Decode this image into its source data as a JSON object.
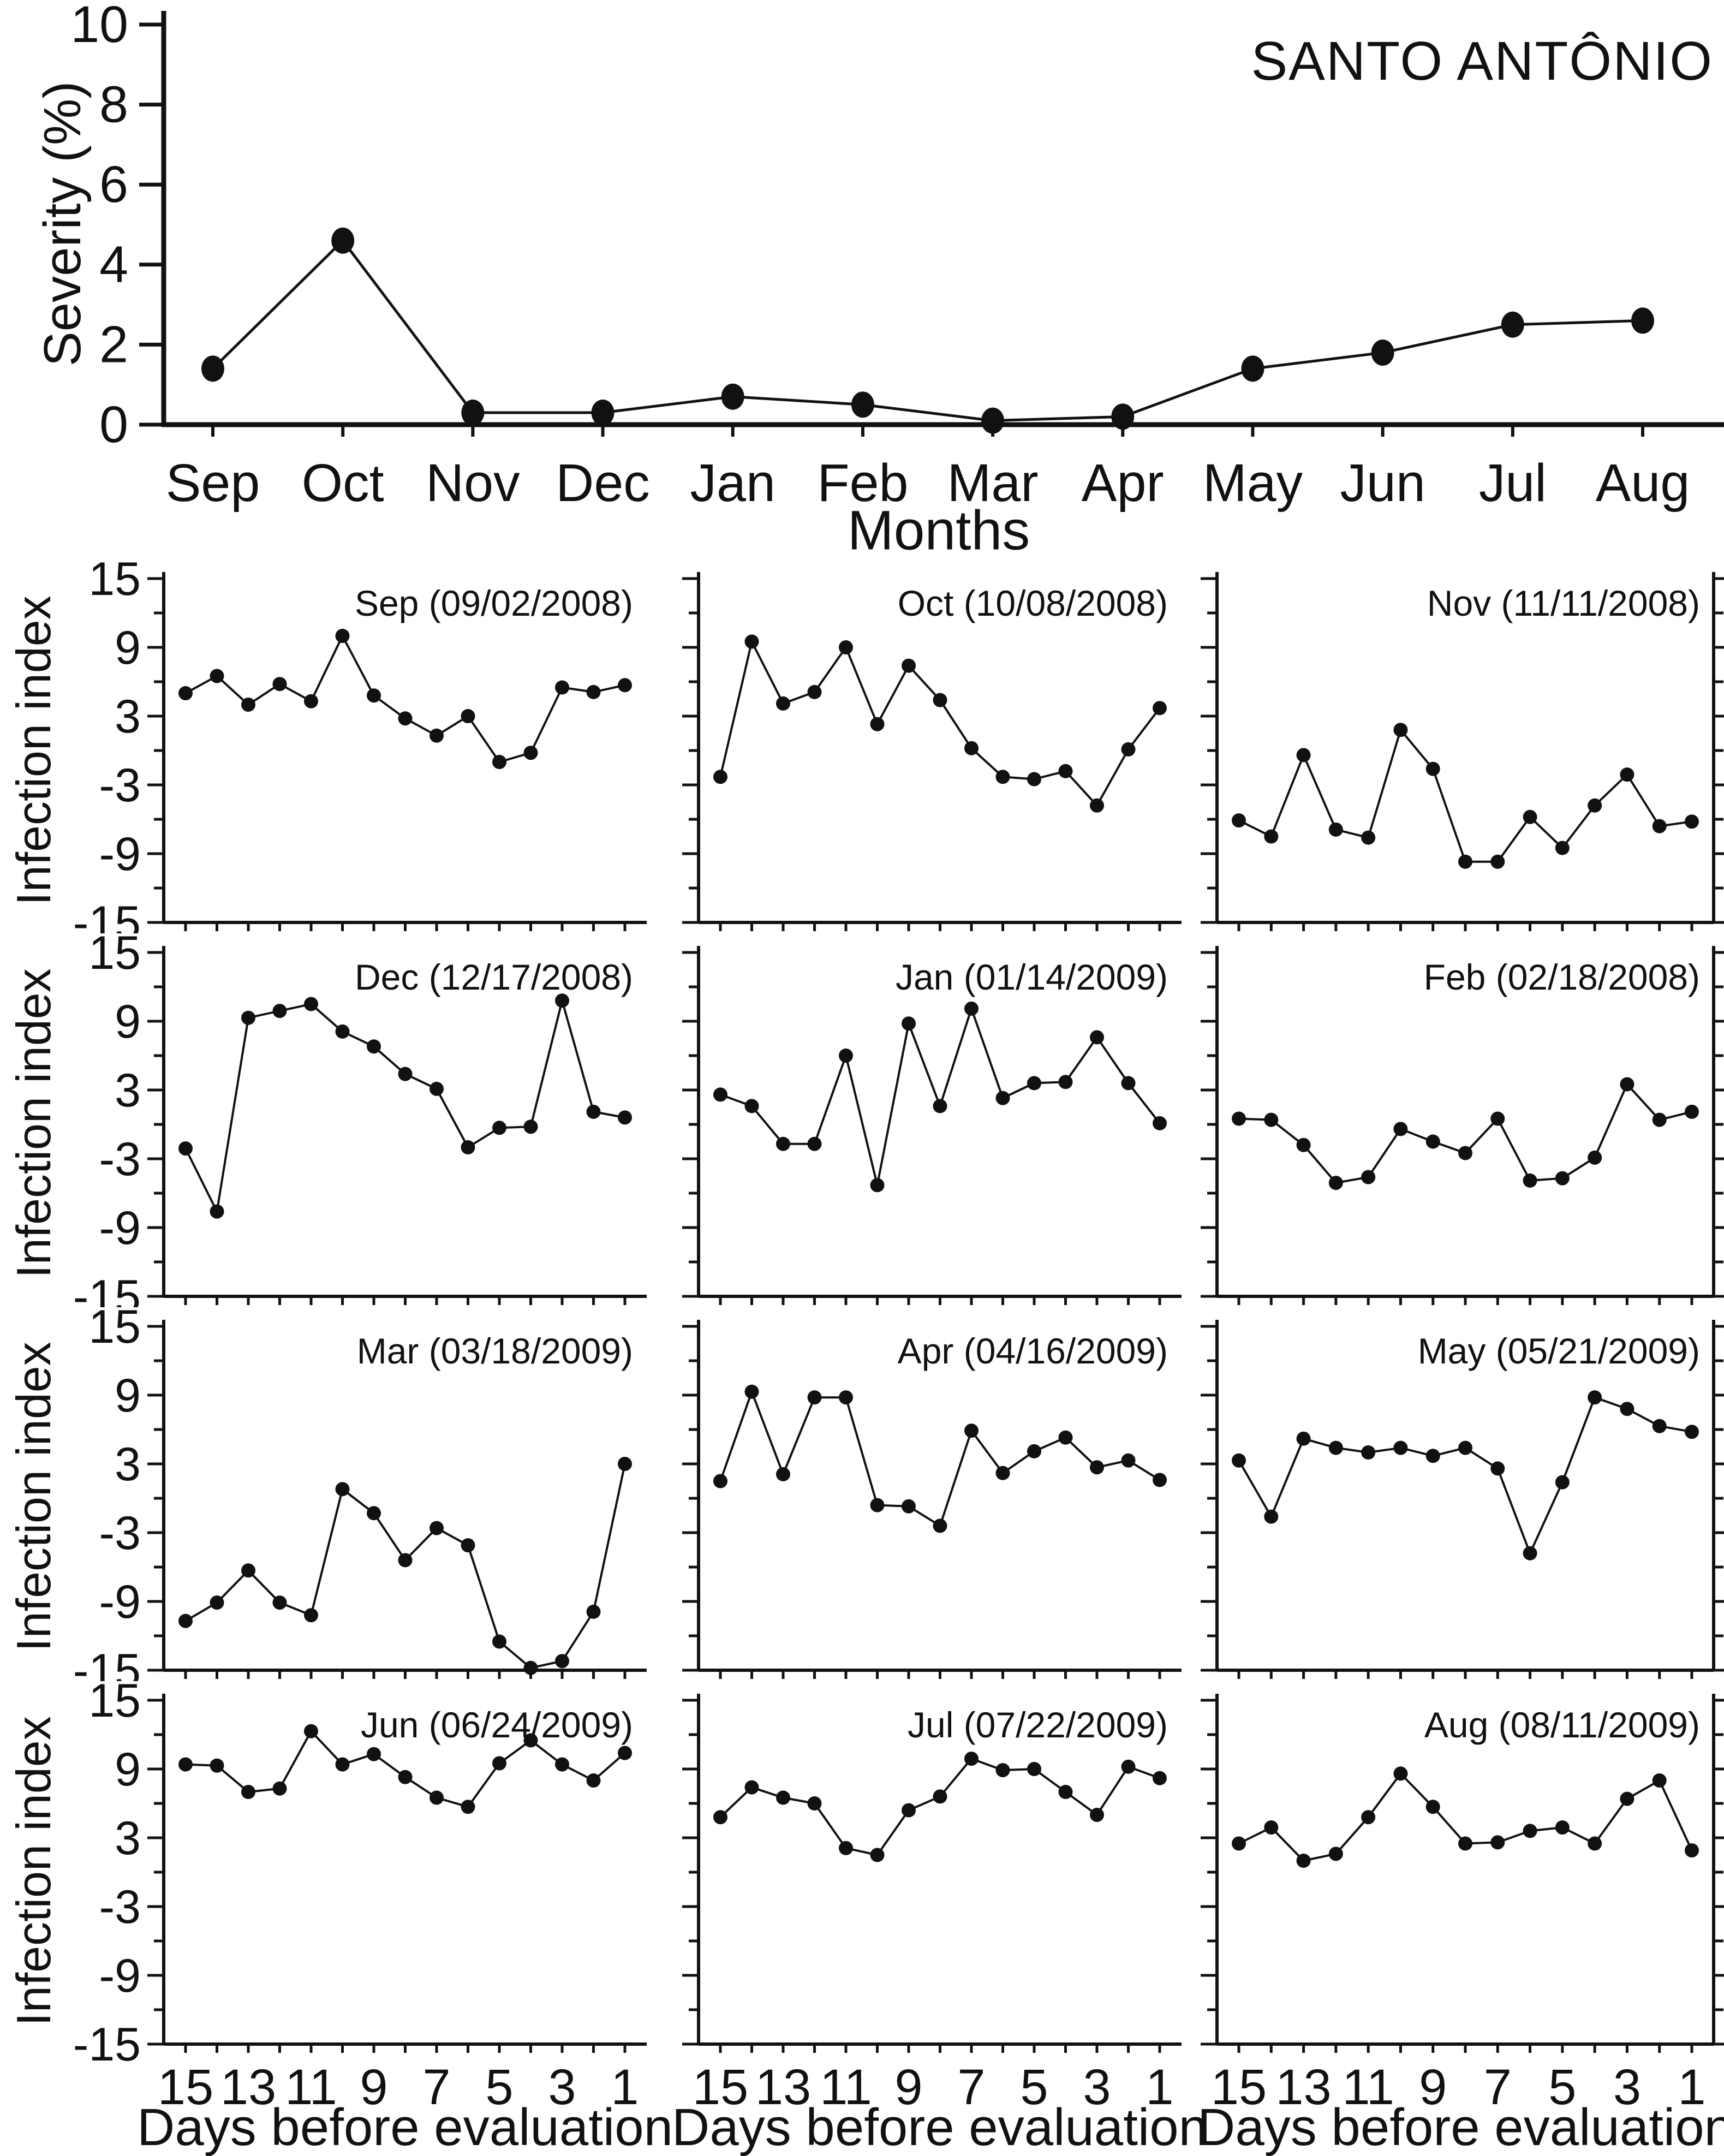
{
  "title": "SANTO ANTÔNIO",
  "labels": {
    "severity_axis": "Severity (%)",
    "months_axis": "Months",
    "infection_axis": "Infection index",
    "days_axis": "Days before evaluation"
  },
  "colors": {
    "ink": "#111111",
    "background": "#ffffff"
  },
  "chart_data": [
    {
      "id": "severity-by-month",
      "type": "line",
      "title": "SANTO ANTÔNIO",
      "categories": [
        "Sep",
        "Oct",
        "Nov",
        "Dec",
        "Jan",
        "Feb",
        "Mar",
        "Apr",
        "May",
        "Jun",
        "Jul",
        "Aug"
      ],
      "values": [
        1.4,
        4.6,
        0.3,
        0.3,
        0.7,
        0.5,
        0.1,
        0.2,
        1.4,
        1.8,
        2.5,
        2.6
      ],
      "xlabel": "Months",
      "ylabel": "Severity (%)",
      "ylim": [
        0,
        10
      ],
      "yticks": [
        0,
        2,
        4,
        6,
        8,
        10
      ],
      "grid": false,
      "legend": "none"
    },
    {
      "id": "sep",
      "type": "line",
      "title": "Sep (09/02/2008)",
      "x": [
        15,
        14,
        13,
        12,
        11,
        10,
        9,
        8,
        7,
        6,
        5,
        4,
        3,
        2,
        1
      ],
      "values": [
        5.0,
        6.5,
        4.0,
        5.8,
        4.3,
        10.0,
        4.8,
        2.8,
        1.3,
        3.0,
        -1.0,
        -0.2,
        5.5,
        5.1,
        5.7
      ],
      "ylim": [
        -15,
        15
      ],
      "yticks": [
        15,
        9,
        3,
        -3,
        -9,
        -15
      ],
      "xticks": [
        15,
        13,
        11,
        9,
        7,
        5,
        3,
        1
      ],
      "ylabel": "Infection index",
      "xlabel": "Days before evaluation"
    },
    {
      "id": "oct",
      "type": "line",
      "title": "Oct (10/08/2008)",
      "x": [
        15,
        14,
        13,
        12,
        11,
        10,
        9,
        8,
        7,
        6,
        5,
        4,
        3,
        2,
        1
      ],
      "values": [
        -2.3,
        9.5,
        4.1,
        5.1,
        9.0,
        2.3,
        7.4,
        4.4,
        0.2,
        -2.3,
        -2.5,
        -1.8,
        -4.8,
        0.1,
        3.7
      ],
      "ylim": [
        -15,
        15
      ],
      "yticks": [
        15,
        9,
        3,
        -3,
        -9,
        -15
      ],
      "xticks": [
        15,
        13,
        11,
        9,
        7,
        5,
        3,
        1
      ],
      "ylabel": "Infection index",
      "xlabel": "Days before evaluation"
    },
    {
      "id": "nov",
      "type": "line",
      "title": "Nov (11/11/2008)",
      "x": [
        15,
        14,
        13,
        12,
        11,
        10,
        9,
        8,
        7,
        6,
        5,
        4,
        3,
        2,
        1
      ],
      "values": [
        -6.1,
        -7.5,
        -0.4,
        -6.9,
        -7.6,
        1.8,
        -1.6,
        -9.7,
        -9.7,
        -5.8,
        -8.5,
        -4.8,
        -2.1,
        -6.6,
        -6.2
      ],
      "ylim": [
        -15,
        15
      ],
      "yticks": [
        15,
        9,
        3,
        -3,
        -9,
        -15
      ],
      "xticks": [
        15,
        13,
        11,
        9,
        7,
        5,
        3,
        1
      ],
      "ylabel": "Infection index",
      "xlabel": "Days before evaluation"
    },
    {
      "id": "dec",
      "type": "line",
      "title": "Dec (12/17/2008)",
      "x": [
        15,
        14,
        13,
        12,
        11,
        10,
        9,
        8,
        7,
        6,
        5,
        4,
        3,
        2,
        1
      ],
      "values": [
        -2.1,
        -7.6,
        9.3,
        9.9,
        10.5,
        8.1,
        6.8,
        4.4,
        3.1,
        -2.0,
        -0.3,
        -0.2,
        10.8,
        1.1,
        0.6
      ],
      "ylim": [
        -15,
        15
      ],
      "yticks": [
        15,
        9,
        3,
        -3,
        -9,
        -15
      ],
      "xticks": [
        15,
        13,
        11,
        9,
        7,
        5,
        3,
        1
      ],
      "ylabel": "Infection index",
      "xlabel": "Days before evaluation"
    },
    {
      "id": "jan",
      "type": "line",
      "title": "Jan (01/14/2009)",
      "x": [
        15,
        14,
        13,
        12,
        11,
        10,
        9,
        8,
        7,
        6,
        5,
        4,
        3,
        2,
        1
      ],
      "values": [
        2.6,
        1.6,
        -1.7,
        -1.7,
        6.0,
        -5.3,
        8.8,
        1.6,
        10.1,
        2.3,
        3.6,
        3.7,
        7.6,
        3.6,
        0.1
      ],
      "ylim": [
        -15,
        15
      ],
      "yticks": [
        15,
        9,
        3,
        -3,
        -9,
        -15
      ],
      "xticks": [
        15,
        13,
        11,
        9,
        7,
        5,
        3,
        1
      ],
      "ylabel": "Infection index",
      "xlabel": "Days before evaluation"
    },
    {
      "id": "feb",
      "type": "line",
      "title": "Feb (02/18/2008)",
      "x": [
        15,
        14,
        13,
        12,
        11,
        10,
        9,
        8,
        7,
        6,
        5,
        4,
        3,
        2,
        1
      ],
      "values": [
        0.5,
        0.4,
        -1.8,
        -5.1,
        -4.6,
        -0.4,
        -1.5,
        -2.5,
        0.5,
        -4.9,
        -4.7,
        -2.9,
        3.5,
        0.4,
        1.1
      ],
      "ylim": [
        -15,
        15
      ],
      "yticks": [
        15,
        9,
        3,
        -3,
        -9,
        -15
      ],
      "xticks": [
        15,
        13,
        11,
        9,
        7,
        5,
        3,
        1
      ],
      "ylabel": "Infection index",
      "xlabel": "Days before evaluation"
    },
    {
      "id": "mar",
      "type": "line",
      "title": "Mar (03/18/2009)",
      "x": [
        15,
        14,
        13,
        12,
        11,
        10,
        9,
        8,
        7,
        6,
        5,
        4,
        3,
        2,
        1
      ],
      "values": [
        -10.7,
        -9.1,
        -6.3,
        -9.1,
        -10.2,
        0.8,
        -1.3,
        -5.4,
        -2.6,
        -4.1,
        -12.5,
        -14.8,
        -14.2,
        -9.9,
        3.0
      ],
      "ylim": [
        -15,
        15
      ],
      "yticks": [
        15,
        9,
        3,
        -3,
        -9,
        -15
      ],
      "xticks": [
        15,
        13,
        11,
        9,
        7,
        5,
        3,
        1
      ],
      "ylabel": "Infection index",
      "xlabel": "Days before evaluation"
    },
    {
      "id": "apr",
      "type": "line",
      "title": "Apr (04/16/2009)",
      "x": [
        15,
        14,
        13,
        12,
        11,
        10,
        9,
        8,
        7,
        6,
        5,
        4,
        3,
        2,
        1
      ],
      "values": [
        1.5,
        9.3,
        2.1,
        8.8,
        8.8,
        -0.6,
        -0.7,
        -2.4,
        5.9,
        2.2,
        4.1,
        5.3,
        2.7,
        3.3,
        1.6
      ],
      "ylim": [
        -15,
        15
      ],
      "yticks": [
        15,
        9,
        3,
        -3,
        -9,
        -15
      ],
      "xticks": [
        15,
        13,
        11,
        9,
        7,
        5,
        3,
        1
      ],
      "ylabel": "Infection index",
      "xlabel": "Days before evaluation"
    },
    {
      "id": "may",
      "type": "line",
      "title": "May (05/21/2009)",
      "x": [
        15,
        14,
        13,
        12,
        11,
        10,
        9,
        8,
        7,
        6,
        5,
        4,
        3,
        2,
        1
      ],
      "values": [
        3.3,
        -1.6,
        5.2,
        4.4,
        4.0,
        4.4,
        3.7,
        4.4,
        2.6,
        -4.8,
        1.4,
        8.8,
        7.8,
        6.3,
        5.8
      ],
      "ylim": [
        -15,
        15
      ],
      "yticks": [
        15,
        9,
        3,
        -3,
        -9,
        -15
      ],
      "xticks": [
        15,
        13,
        11,
        9,
        7,
        5,
        3,
        1
      ],
      "ylabel": "Infection index",
      "xlabel": "Days before evaluation"
    },
    {
      "id": "jun",
      "type": "line",
      "title": "Jun (06/24/2009)",
      "x": [
        15,
        14,
        13,
        12,
        11,
        10,
        9,
        8,
        7,
        6,
        5,
        4,
        3,
        2,
        1
      ],
      "values": [
        9.4,
        9.3,
        7.0,
        7.3,
        12.3,
        9.4,
        10.3,
        8.3,
        6.5,
        5.7,
        9.5,
        11.5,
        9.4,
        8.0,
        10.4
      ],
      "ylim": [
        -15,
        15
      ],
      "yticks": [
        15,
        9,
        3,
        -3,
        -9,
        -15
      ],
      "xticks": [
        15,
        13,
        11,
        9,
        7,
        5,
        3,
        1
      ],
      "ylabel": "Infection index",
      "xlabel": "Days before evaluation"
    },
    {
      "id": "jul",
      "type": "line",
      "title": "Jul (07/22/2009)",
      "x": [
        15,
        14,
        13,
        12,
        11,
        10,
        9,
        8,
        7,
        6,
        5,
        4,
        3,
        2,
        1
      ],
      "values": [
        4.8,
        7.4,
        6.5,
        6.0,
        2.1,
        1.5,
        5.4,
        6.6,
        9.9,
        8.9,
        9.0,
        7.0,
        5.0,
        9.2,
        8.2
      ],
      "ylim": [
        -15,
        15
      ],
      "yticks": [
        15,
        9,
        3,
        -3,
        -9,
        -15
      ],
      "xticks": [
        15,
        13,
        11,
        9,
        7,
        5,
        3,
        1
      ],
      "ylabel": "Infection index",
      "xlabel": "Days before evaluation"
    },
    {
      "id": "aug",
      "type": "line",
      "title": "Aug (08/11/2009)",
      "x": [
        15,
        14,
        13,
        12,
        11,
        10,
        9,
        8,
        7,
        6,
        5,
        4,
        3,
        2,
        1
      ],
      "values": [
        2.5,
        3.9,
        1.0,
        1.6,
        4.8,
        8.6,
        5.7,
        2.5,
        2.6,
        3.6,
        3.9,
        2.5,
        6.4,
        8.0,
        1.9
      ],
      "ylim": [
        -15,
        15
      ],
      "yticks": [
        15,
        9,
        3,
        -3,
        -9,
        -15
      ],
      "xticks": [
        15,
        13,
        11,
        9,
        7,
        5,
        3,
        1
      ],
      "ylabel": "Infection index",
      "xlabel": "Days before evaluation"
    }
  ]
}
